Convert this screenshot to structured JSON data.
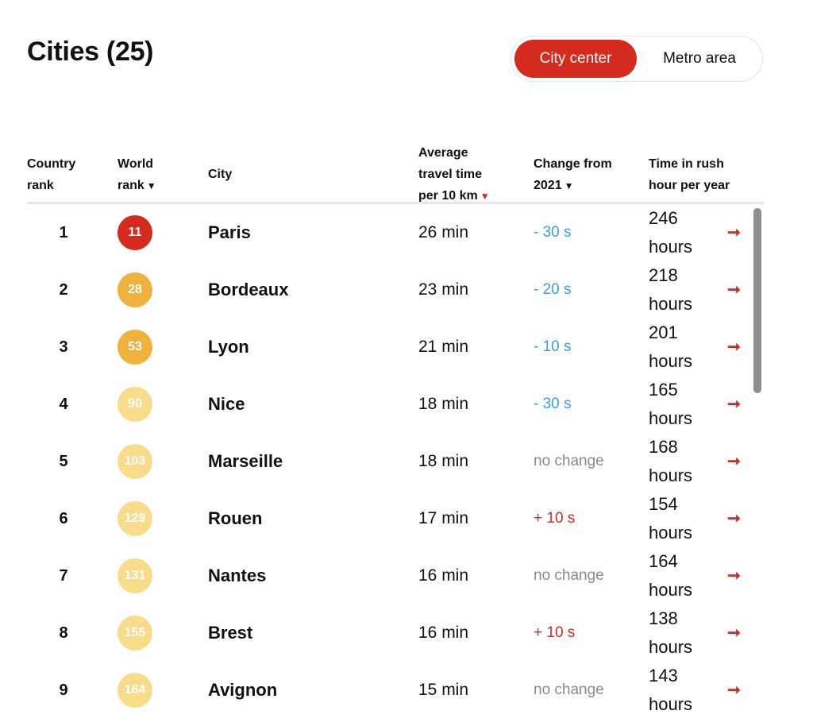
{
  "title": "Cities (25)",
  "toggle": {
    "active": "City center",
    "inactive": "Metro area"
  },
  "columns": {
    "country_rank": [
      "Country",
      "rank"
    ],
    "world_rank": [
      "World",
      "rank"
    ],
    "city": "City",
    "avg_travel_time": [
      "Average",
      "travel time",
      "per 10 km"
    ],
    "change": [
      "Change from",
      "2021"
    ],
    "rush_hour": [
      "Time in rush",
      "hour per year"
    ]
  },
  "colors": {
    "accent": "#d52b1e",
    "decrease": "#3a9ee8",
    "increase": "#d52b1e",
    "neutral": "#8a8a8a",
    "badge_red": "#d52b1e",
    "badge_orange": "#f0b23d",
    "badge_light": "#f8dc8a"
  },
  "rows": [
    {
      "country_rank": "1",
      "world_rank": "11",
      "badge": "red",
      "city": "Paris",
      "time": "26 min",
      "change": "- 30 s",
      "change_type": "decrease",
      "rush": [
        "246",
        "hours"
      ]
    },
    {
      "country_rank": "2",
      "world_rank": "28",
      "badge": "orange",
      "city": "Bordeaux",
      "time": "23 min",
      "change": "- 20 s",
      "change_type": "decrease",
      "rush": [
        "218",
        "hours"
      ]
    },
    {
      "country_rank": "3",
      "world_rank": "53",
      "badge": "orange",
      "city": "Lyon",
      "time": "21 min",
      "change": "- 10 s",
      "change_type": "decrease",
      "rush": [
        "201",
        "hours"
      ]
    },
    {
      "country_rank": "4",
      "world_rank": "90",
      "badge": "light",
      "city": "Nice",
      "time": "18 min",
      "change": "- 30 s",
      "change_type": "decrease",
      "rush": [
        "165",
        "hours"
      ]
    },
    {
      "country_rank": "5",
      "world_rank": "103",
      "badge": "light",
      "city": "Marseille",
      "time": "18 min",
      "change": "no change",
      "change_type": "neutral",
      "rush": [
        "168",
        "hours"
      ]
    },
    {
      "country_rank": "6",
      "world_rank": "129",
      "badge": "light",
      "city": "Rouen",
      "time": "17 min",
      "change": "+ 10 s",
      "change_type": "increase",
      "rush": [
        "154",
        "hours"
      ]
    },
    {
      "country_rank": "7",
      "world_rank": "131",
      "badge": "light",
      "city": "Nantes",
      "time": "16 min",
      "change": "no change",
      "change_type": "neutral",
      "rush": [
        "164",
        "hours"
      ]
    },
    {
      "country_rank": "8",
      "world_rank": "155",
      "badge": "light",
      "city": "Brest",
      "time": "16 min",
      "change": "+ 10 s",
      "change_type": "increase",
      "rush": [
        "138",
        "hours"
      ]
    },
    {
      "country_rank": "9",
      "world_rank": "164",
      "badge": "light",
      "city": "Avignon",
      "time": "15 min",
      "change": "no change",
      "change_type": "neutral",
      "rush": [
        "143",
        "hours"
      ]
    }
  ]
}
